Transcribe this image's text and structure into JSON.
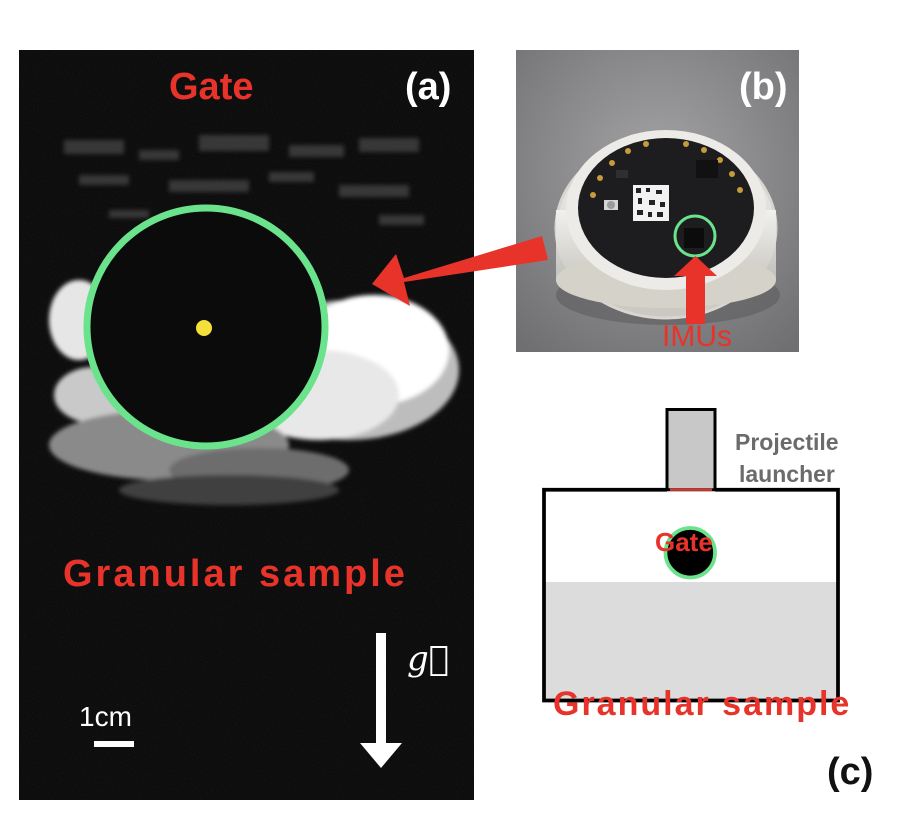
{
  "panel_a": {
    "label": "(a)",
    "gate_text": "Gate",
    "sample_text": "Granular sample",
    "scale_text": "1cm",
    "gravity_symbol": "g⃗"
  },
  "panel_b": {
    "label": "(b)",
    "imu_text": "IMUs"
  },
  "panel_c": {
    "label": "(c)",
    "launcher_line1": "Projectile",
    "launcher_line2": "launcher",
    "gate_text": "Gate",
    "sample_text": "Granular sample"
  },
  "colors": {
    "accent_red": "#e8332a",
    "ring_green": "#6be38c",
    "center_yellow": "#f4e03a",
    "sample_grey": "#dcdcdc",
    "launcher_grey": "#c8c8c8"
  }
}
